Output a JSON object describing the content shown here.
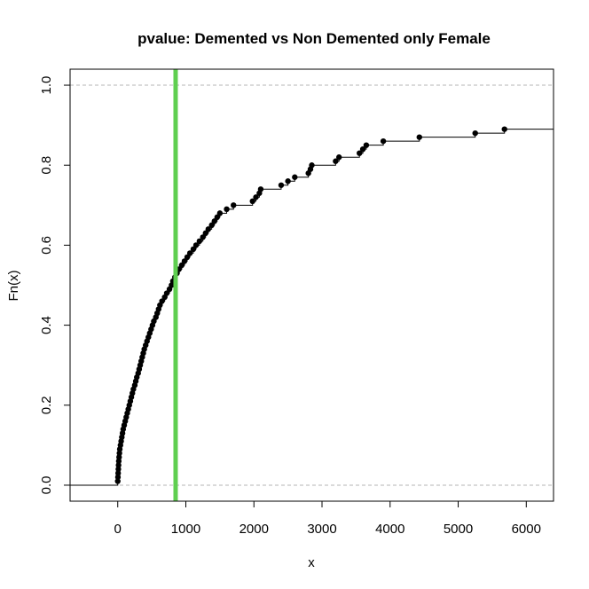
{
  "chart_data": {
    "type": "line",
    "subtype": "ecdf",
    "title": "pvalue: Demented vs Non Demented only Female",
    "xlabel": "x",
    "ylabel": "Fn(x)",
    "xlim": [
      -700,
      6400
    ],
    "ylim": [
      -0.04,
      1.04
    ],
    "xticks": [
      0,
      1000,
      2000,
      3000,
      4000,
      5000,
      6000
    ],
    "xtick_labels": [
      "0",
      "1000",
      "2000",
      "3000",
      "4000",
      "5000",
      "6000"
    ],
    "yticks": [
      0.0,
      0.2,
      0.4,
      0.6,
      0.8,
      1.0
    ],
    "ytick_labels": [
      "0.0",
      "0.2",
      "0.4",
      "0.6",
      "0.8",
      "1.0"
    ],
    "reference_lines": [
      0,
      1
    ],
    "vertical_line": {
      "x": 850,
      "color": "#5fcf50"
    },
    "colors": {
      "points": "#000000",
      "step": "#000000",
      "reference": "#b4b4b4"
    },
    "grid": false,
    "points": {
      "x": [
        0,
        3,
        6,
        9,
        12,
        15,
        20,
        25,
        30,
        40,
        50,
        60,
        70,
        80,
        95,
        110,
        125,
        140,
        155,
        170,
        185,
        200,
        215,
        230,
        250,
        265,
        280,
        300,
        315,
        330,
        345,
        360,
        375,
        390,
        410,
        430,
        450,
        470,
        490,
        510,
        530,
        560,
        580,
        600,
        620,
        650,
        690,
        720,
        760,
        790,
        810,
        840,
        870,
        900,
        940,
        980,
        1020,
        1060,
        1110,
        1150,
        1200,
        1250,
        1290,
        1330,
        1380,
        1420,
        1460,
        1500,
        1600,
        1700,
        1980,
        2030,
        2080,
        2100,
        2400,
        2500,
        2600,
        2800,
        2830,
        2850,
        3200,
        3250,
        3550,
        3600,
        3650,
        3900,
        4430,
        5250,
        5680
      ],
      "y": [
        0.01,
        0.02,
        0.03,
        0.04,
        0.05,
        0.06,
        0.07,
        0.08,
        0.09,
        0.1,
        0.11,
        0.12,
        0.13,
        0.14,
        0.15,
        0.16,
        0.17,
        0.18,
        0.19,
        0.2,
        0.21,
        0.22,
        0.23,
        0.24,
        0.25,
        0.26,
        0.27,
        0.28,
        0.29,
        0.3,
        0.31,
        0.32,
        0.33,
        0.34,
        0.35,
        0.36,
        0.37,
        0.38,
        0.39,
        0.4,
        0.41,
        0.42,
        0.43,
        0.44,
        0.45,
        0.46,
        0.47,
        0.48,
        0.49,
        0.5,
        0.51,
        0.52,
        0.53,
        0.54,
        0.55,
        0.56,
        0.57,
        0.58,
        0.59,
        0.6,
        0.61,
        0.62,
        0.63,
        0.64,
        0.65,
        0.66,
        0.67,
        0.68,
        0.69,
        0.7,
        0.71,
        0.72,
        0.73,
        0.74,
        0.75,
        0.76,
        0.77,
        0.78,
        0.79,
        0.8,
        0.81,
        0.82,
        0.83,
        0.84,
        0.85,
        0.86,
        0.87,
        0.88,
        0.89
      ]
    }
  }
}
